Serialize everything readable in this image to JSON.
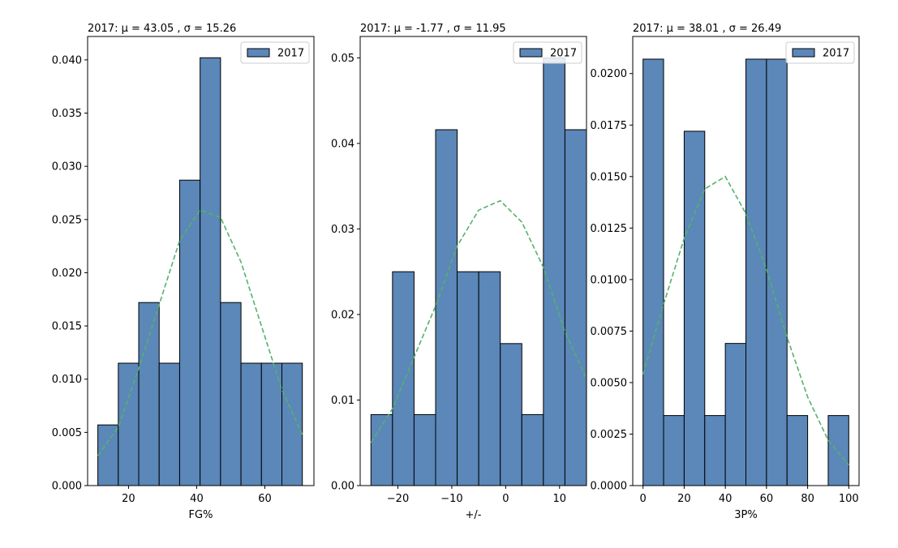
{
  "colors": {
    "bar": "#5b87b9",
    "bar_edge": "#000000",
    "fit_line": "#55b26b"
  },
  "chart_data": [
    {
      "type": "bar",
      "title": "2017: μ = 43.05 , σ = 15.26",
      "xlabel": "FG%",
      "ylabel": "",
      "legend": {
        "position": "top-right",
        "label": "2017"
      },
      "grid": false,
      "xlim": [
        8,
        74.4
      ],
      "ylim": [
        0,
        0.0422
      ],
      "xticks": [
        20,
        40,
        60
      ],
      "yticks": [
        0.0,
        0.005,
        0.01,
        0.015,
        0.02,
        0.025,
        0.03,
        0.035,
        0.04
      ],
      "ytick_decimals": 3,
      "bins": [
        {
          "x0": 11.0,
          "x1": 17.0,
          "value": 0.0057
        },
        {
          "x0": 17.0,
          "x1": 23.0,
          "value": 0.0115
        },
        {
          "x0": 23.0,
          "x1": 29.0,
          "value": 0.0172
        },
        {
          "x0": 29.0,
          "x1": 35.0,
          "value": 0.0115
        },
        {
          "x0": 35.0,
          "x1": 41.0,
          "value": 0.0287
        },
        {
          "x0": 41.0,
          "x1": 47.0,
          "value": 0.0402
        },
        {
          "x0": 47.0,
          "x1": 53.0,
          "value": 0.0172
        },
        {
          "x0": 53.0,
          "x1": 59.0,
          "value": 0.0115
        },
        {
          "x0": 59.0,
          "x1": 65.0,
          "value": 0.0115
        },
        {
          "x0": 65.0,
          "x1": 71.0,
          "value": 0.0115
        }
      ],
      "fit_line": {
        "x": [
          11,
          17,
          23,
          29,
          35,
          41,
          47,
          53,
          59,
          65,
          71
        ],
        "y": [
          0.0028,
          0.0055,
          0.011,
          0.017,
          0.023,
          0.0259,
          0.0252,
          0.021,
          0.015,
          0.009,
          0.0048
        ]
      }
    },
    {
      "type": "bar",
      "title": "2017: μ = -1.77 , σ = 11.95",
      "xlabel": "+/-",
      "ylabel": "",
      "legend": {
        "position": "top-right",
        "label": "2017"
      },
      "grid": false,
      "xlim": [
        -27.0,
        15.0
      ],
      "ylim": [
        0,
        0.0525
      ],
      "xticks": [
        -20,
        -10,
        0,
        10
      ],
      "yticks": [
        0.0,
        0.01,
        0.02,
        0.03,
        0.04,
        0.05
      ],
      "ytick_decimals": 2,
      "bins": [
        {
          "x0": -25.0,
          "x1": -21.0,
          "value": 0.0083
        },
        {
          "x0": -21.0,
          "x1": -17.0,
          "value": 0.025
        },
        {
          "x0": -17.0,
          "x1": -13.0,
          "value": 0.0083
        },
        {
          "x0": -13.0,
          "x1": -9.0,
          "value": 0.0416
        },
        {
          "x0": -9.0,
          "x1": -5.0,
          "value": 0.025
        },
        {
          "x0": -5.0,
          "x1": -1.0,
          "value": 0.025
        },
        {
          "x0": -1.0,
          "x1": 3.0,
          "value": 0.0166
        },
        {
          "x0": 3.0,
          "x1": 7.0,
          "value": 0.0083
        },
        {
          "x0": 7.0,
          "x1": 11.0,
          "value": 0.05
        },
        {
          "x0": 11.0,
          "x1": 15.0,
          "value": 0.0416
        }
      ],
      "fit_line": {
        "x": [
          -25,
          -21,
          -17,
          -13,
          -9,
          -5,
          -1,
          3,
          7,
          11,
          15
        ],
        "y": [
          0.005,
          0.009,
          0.015,
          0.021,
          0.028,
          0.0322,
          0.0333,
          0.0308,
          0.0255,
          0.018,
          0.0125
        ]
      }
    },
    {
      "type": "bar",
      "title": "2017: μ = 38.01 , σ = 26.49",
      "xlabel": "3P%",
      "ylabel": "",
      "legend": {
        "position": "top-right",
        "label": "2017"
      },
      "grid": false,
      "xlim": [
        -5,
        105
      ],
      "ylim": [
        0,
        0.0218
      ],
      "xticks": [
        0,
        20,
        40,
        60,
        80,
        100
      ],
      "yticks": [
        0.0,
        0.0025,
        0.005,
        0.0075,
        0.01,
        0.0125,
        0.015,
        0.0175,
        0.02
      ],
      "ytick_decimals": 4,
      "bins": [
        {
          "x0": 0,
          "x1": 10,
          "value": 0.0207
        },
        {
          "x0": 10,
          "x1": 20,
          "value": 0.0034
        },
        {
          "x0": 20,
          "x1": 30,
          "value": 0.0172
        },
        {
          "x0": 30,
          "x1": 40,
          "value": 0.0034
        },
        {
          "x0": 40,
          "x1": 50,
          "value": 0.0069
        },
        {
          "x0": 50,
          "x1": 60,
          "value": 0.0207
        },
        {
          "x0": 60,
          "x1": 70,
          "value": 0.0207
        },
        {
          "x0": 70,
          "x1": 80,
          "value": 0.0034
        },
        {
          "x0": 80,
          "x1": 90,
          "value": 0.0
        },
        {
          "x0": 90,
          "x1": 100,
          "value": 0.0034
        }
      ],
      "fit_line": {
        "x": [
          0,
          10,
          20,
          30,
          40,
          50,
          60,
          70,
          80,
          90,
          100
        ],
        "y": [
          0.0054,
          0.0088,
          0.012,
          0.0144,
          0.015,
          0.0132,
          0.0105,
          0.0072,
          0.0043,
          0.0022,
          0.001
        ]
      }
    }
  ]
}
